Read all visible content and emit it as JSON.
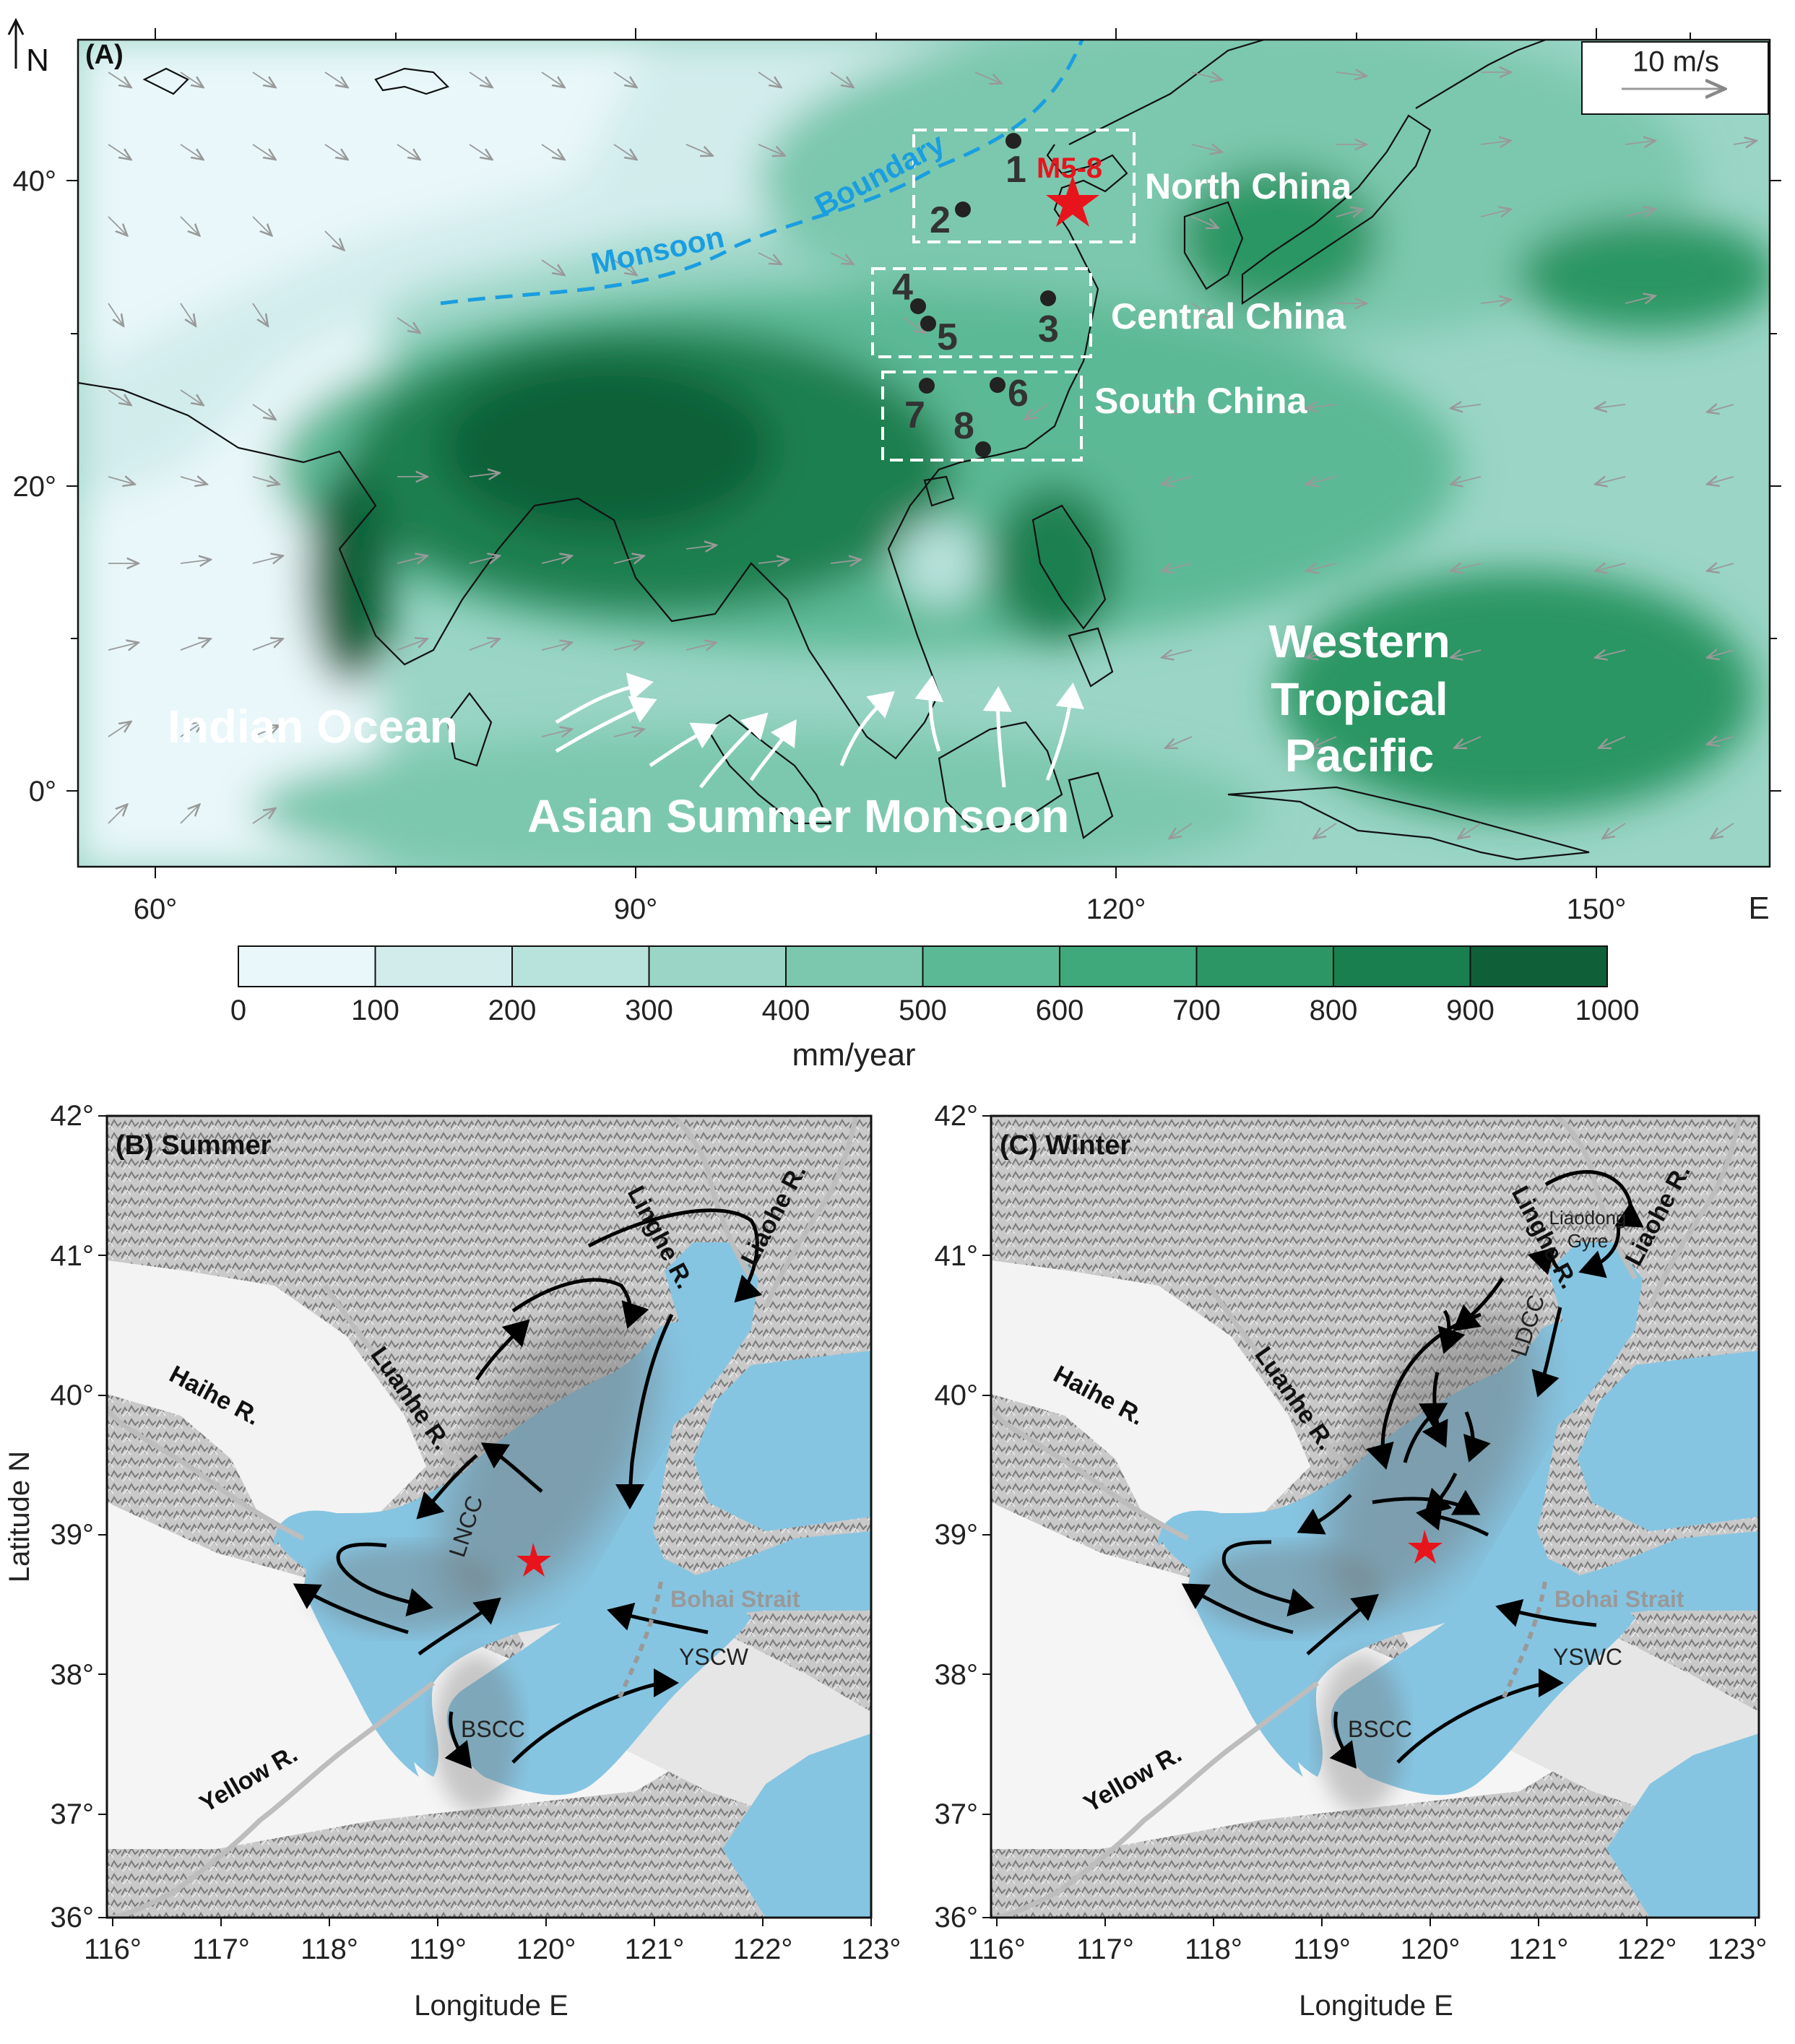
{
  "panel_a": {
    "title": "(A)",
    "north": "N",
    "scale_label": "10 m/s",
    "lon_ticks": [
      "60°",
      "90°",
      "120°",
      "150°"
    ],
    "lon_axis_label": "E",
    "lat_ticks": [
      "40°",
      "20°",
      "0°"
    ],
    "monsoon_boundary": [
      "Monsoon",
      "Boundary"
    ],
    "regions": [
      "North China",
      "Central China",
      "South China"
    ],
    "marker_label": "M5-8",
    "sites": [
      "1",
      "2",
      "3",
      "4",
      "5",
      "6",
      "7",
      "8"
    ],
    "indian_ocean": "Indian Ocean",
    "pacific": [
      "Western",
      "Tropical",
      "Pacific"
    ],
    "monsoon_label": "Asian Summer Monsoon",
    "colorbar": {
      "ticks": [
        "0",
        "100",
        "200",
        "300",
        "400",
        "500",
        "600",
        "700",
        "800",
        "900",
        "1000"
      ],
      "unit": "mm/year",
      "colors": [
        "#e9f7fa",
        "#d2ecec",
        "#b8e2dc",
        "#9ad5c5",
        "#7bc8ae",
        "#5cb995",
        "#40a97c",
        "#2c9664",
        "#1a7f4f",
        "#0f6039"
      ]
    }
  },
  "panel_b": {
    "title": "(B) Summer",
    "rivers": [
      "Linghe R.",
      "Liaohe R.",
      "Luanhe R.",
      "Haihe R.",
      "Yellow R."
    ],
    "currents": [
      "LNCC",
      "YSCW",
      "BSCC"
    ],
    "strait": "Bohai Strait"
  },
  "panel_c": {
    "title": "(C) Winter",
    "rivers": [
      "Linghe R.",
      "Liaohe R.",
      "Luanhe R.",
      "Haihe R.",
      "Yellow R."
    ],
    "currents": [
      "LDCC",
      "YSWC",
      "BSCC"
    ],
    "gyre": [
      "Liaodong",
      "Gyre"
    ],
    "strait": "Bohai Strait"
  },
  "bottom_axes": {
    "lat_ticks": [
      "42°",
      "41°",
      "40°",
      "39°",
      "38°",
      "37°",
      "36°"
    ],
    "lon_ticks": [
      "116°",
      "117°",
      "118°",
      "119°",
      "120°",
      "121°",
      "122°",
      "123°"
    ],
    "ylabel": "Latitude N",
    "xlabel": "Longitude E"
  },
  "colors": {
    "sea_blue": "#86c5e2",
    "monsoon_line": "#1a9ee0",
    "marker_red": "#e8141c"
  }
}
